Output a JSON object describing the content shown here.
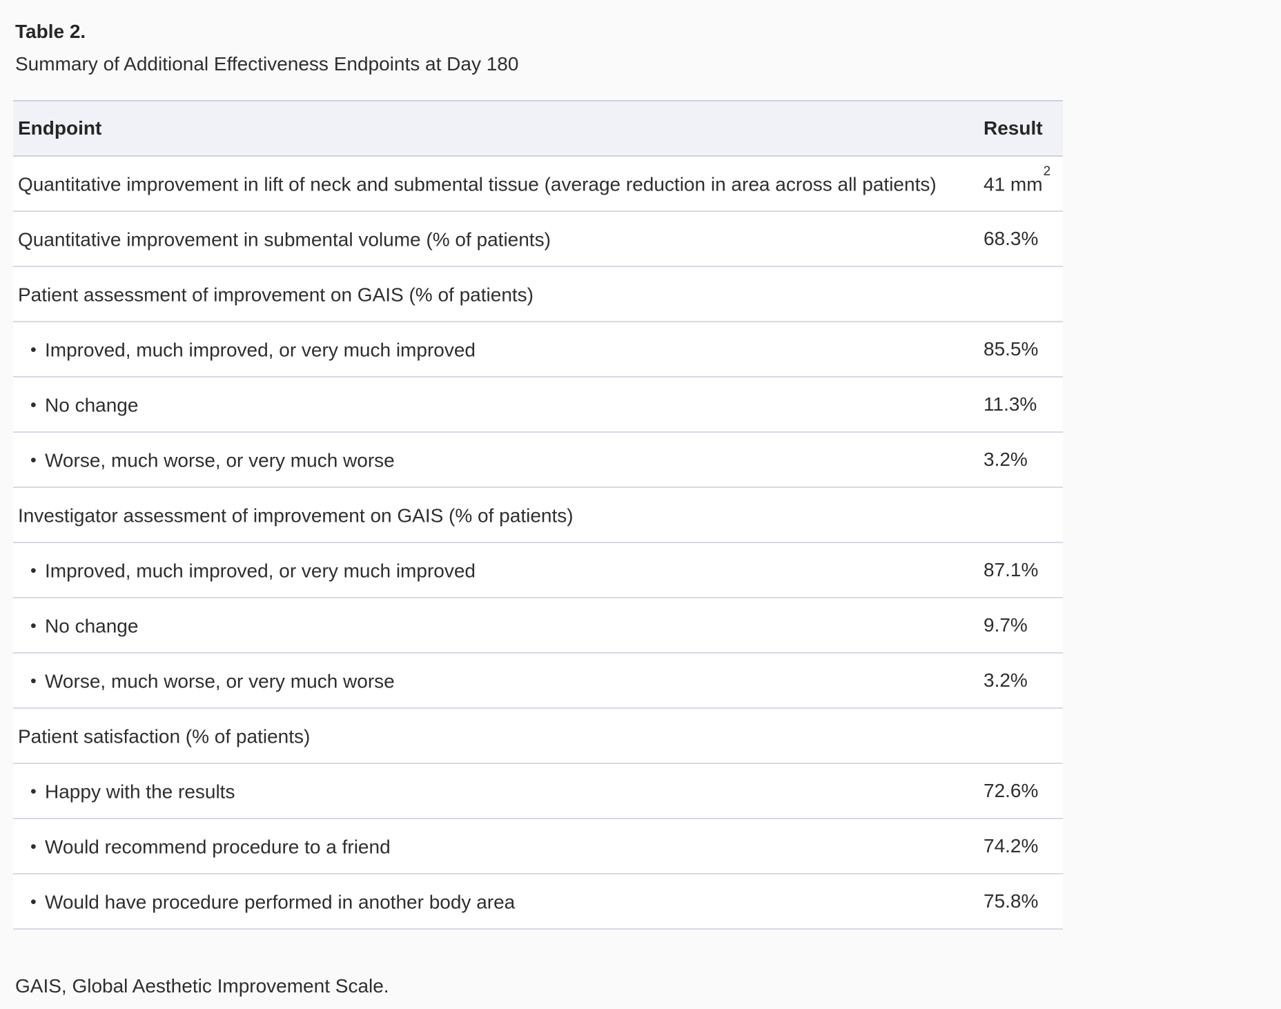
{
  "page": {
    "background": "#fafafa",
    "table_background": "#ffffff",
    "header_background": "#f1f2f7",
    "border_color": "#d6dae6",
    "text_color": "#2e2e2e"
  },
  "title": {
    "label": "Table 2.",
    "caption": "Summary of Additional Effectiveness Endpoints at Day 180"
  },
  "bullet_glyph": "•",
  "table": {
    "columns": [
      "Endpoint",
      "Result"
    ],
    "rows": [
      {
        "type": "item",
        "endpoint": "Quantitative improvement in lift of neck and submental tissue (average reduction in area across all patients)",
        "result": "41 mm",
        "result_sup": "2"
      },
      {
        "type": "item",
        "endpoint": "Quantitative improvement in submental volume (% of patients)",
        "result": "68.3%"
      },
      {
        "type": "group",
        "endpoint": "Patient assessment of improvement on GAIS (% of patients)",
        "result": ""
      },
      {
        "type": "bullet",
        "endpoint": "Improved, much improved, or very much improved",
        "result": "85.5%"
      },
      {
        "type": "bullet",
        "endpoint": "No change",
        "result": "11.3%"
      },
      {
        "type": "bullet",
        "endpoint": "Worse, much worse, or very much worse",
        "result": "3.2%"
      },
      {
        "type": "group",
        "endpoint": "Investigator assessment of improvement on GAIS (% of patients)",
        "result": ""
      },
      {
        "type": "bullet",
        "endpoint": "Improved, much improved, or very much improved",
        "result": "87.1%"
      },
      {
        "type": "bullet",
        "endpoint": "No change",
        "result": "9.7%"
      },
      {
        "type": "bullet",
        "endpoint": "Worse, much worse, or very much worse",
        "result": "3.2%"
      },
      {
        "type": "group",
        "endpoint": "Patient satisfaction (% of patients)",
        "result": ""
      },
      {
        "type": "bullet",
        "endpoint": "Happy with the results",
        "result": "72.6%"
      },
      {
        "type": "bullet",
        "endpoint": "Would recommend procedure to a friend",
        "result": "74.2%"
      },
      {
        "type": "bullet",
        "endpoint": "Would have procedure performed in another body area",
        "result": "75.8%"
      }
    ]
  },
  "footnote": "GAIS, Global Aesthetic Improvement Scale."
}
